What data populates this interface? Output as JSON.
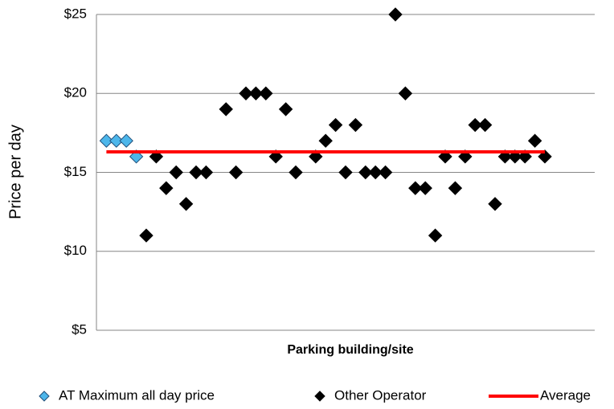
{
  "chart_data": {
    "type": "scatter",
    "x_label": "Parking building/site",
    "y_label": "Price per day",
    "xlim": [
      0,
      50
    ],
    "ylim": [
      5,
      25
    ],
    "yticks": [
      {
        "value": 5,
        "label": "$5"
      },
      {
        "value": 10,
        "label": "$10"
      },
      {
        "value": 15,
        "label": "$15"
      },
      {
        "value": 20,
        "label": "$20"
      },
      {
        "value": 25,
        "label": "$25"
      }
    ],
    "grid": true,
    "legend": "bottom",
    "series": [
      {
        "name": "AT Maximum all day price",
        "color": "#4db6ea",
        "marker": "diamond",
        "x": [
          1,
          2,
          3,
          4
        ],
        "values": [
          17,
          17,
          17,
          16
        ]
      },
      {
        "name": "Other Operator",
        "color": "#000000",
        "marker": "diamond",
        "x": [
          5,
          6,
          7,
          8,
          9,
          10,
          11,
          13,
          14,
          15,
          16,
          17,
          18,
          19,
          20,
          22,
          23,
          24,
          25,
          26,
          27,
          28,
          29,
          30,
          31,
          32,
          33,
          34,
          35,
          36,
          37,
          38,
          39,
          40,
          41,
          42,
          43,
          44,
          45
        ],
        "values": [
          11,
          16,
          14,
          15,
          13,
          15,
          15,
          19,
          15,
          20,
          20,
          20,
          16,
          19,
          15,
          16,
          17,
          18,
          15,
          18,
          15,
          15,
          15,
          25,
          20,
          14,
          14,
          11,
          16,
          14,
          16,
          18,
          18,
          13,
          16,
          16,
          16,
          17,
          16
        ]
      },
      {
        "name": "Average",
        "color": "#ff0000",
        "marker": "line",
        "x": [
          1,
          45
        ],
        "values": [
          16.3,
          16.3
        ]
      }
    ]
  }
}
